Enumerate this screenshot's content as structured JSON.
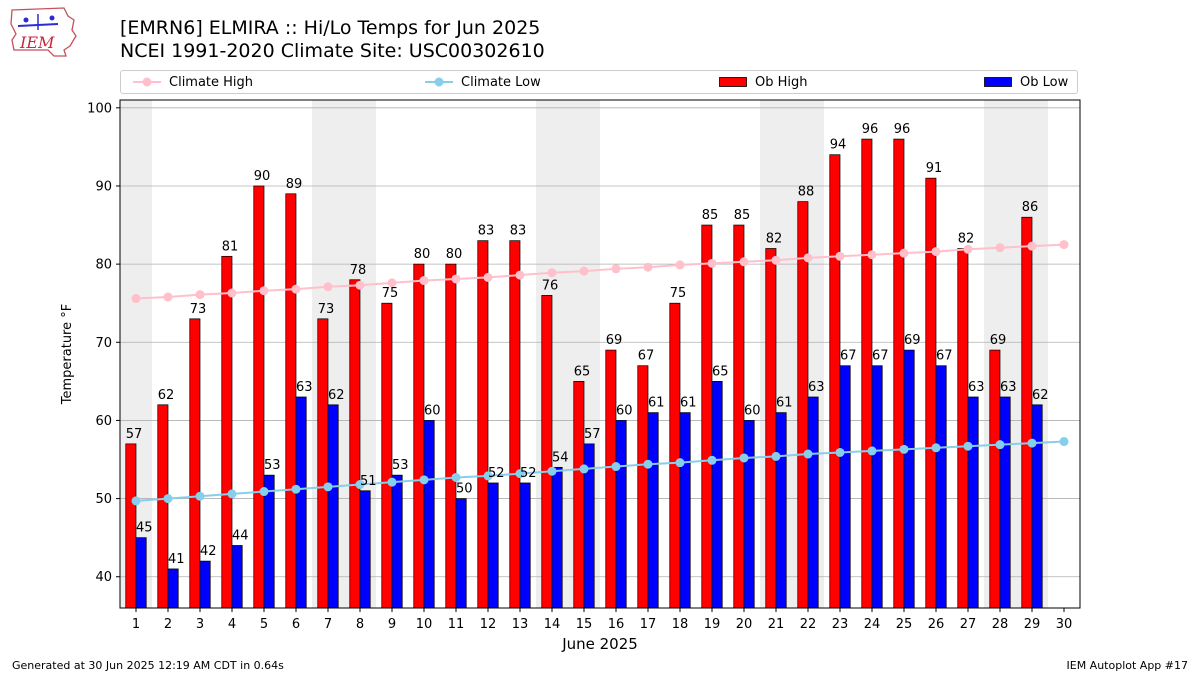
{
  "header": {
    "title_line1": "[EMRN6] ELMIRA :: Hi/Lo Temps for Jun 2025",
    "title_line2": "NCEI 1991-2020 Climate Site: USC00302610",
    "logo_text": "IEM"
  },
  "legend": {
    "climate_high": "Climate High",
    "climate_low": "Climate Low",
    "ob_high": "Ob High",
    "ob_low": "Ob Low"
  },
  "footer": {
    "generated": "Generated at 30 Jun 2025 12:19 AM CDT in 0.64s",
    "app": "IEM Autoplot App #17"
  },
  "colors": {
    "ob_high": "#ff0000",
    "ob_low": "#0000ff",
    "climate_high": "#ffc0cb",
    "climate_low": "#87ceeb",
    "weekend_band": "#eeeeee",
    "grid": "#b0b0b0"
  },
  "chart_data": {
    "type": "bar",
    "title": "[EMRN6] ELMIRA :: Hi/Lo Temps for Jun 2025",
    "xlabel": "June 2025",
    "ylabel": "Temperature °F",
    "ylim": [
      36,
      101
    ],
    "yticks": [
      40,
      50,
      60,
      70,
      80,
      90,
      100
    ],
    "xlim": [
      0.5,
      30.5
    ],
    "grid": "horizontal",
    "legend_position": "top",
    "categories": [
      "1",
      "2",
      "3",
      "4",
      "5",
      "6",
      "7",
      "8",
      "9",
      "10",
      "11",
      "12",
      "13",
      "14",
      "15",
      "16",
      "17",
      "18",
      "19",
      "20",
      "21",
      "22",
      "23",
      "24",
      "25",
      "26",
      "27",
      "28",
      "29",
      "30"
    ],
    "weekend_days": [
      1,
      7,
      8,
      14,
      15,
      21,
      22,
      28,
      29
    ],
    "series": [
      {
        "name": "Ob High",
        "kind": "bar",
        "values": [
          57,
          62,
          73,
          81,
          90,
          89,
          73,
          78,
          75,
          80,
          80,
          83,
          83,
          76,
          65,
          69,
          67,
          75,
          85,
          85,
          82,
          88,
          94,
          96,
          96,
          91,
          82,
          69,
          86,
          null
        ]
      },
      {
        "name": "Ob Low",
        "kind": "bar",
        "values": [
          45,
          41,
          42,
          44,
          53,
          63,
          62,
          51,
          53,
          60,
          50,
          52,
          52,
          54,
          57,
          60,
          61,
          61,
          65,
          60,
          61,
          63,
          67,
          67,
          69,
          67,
          63,
          63,
          62,
          null
        ]
      },
      {
        "name": "Climate High",
        "kind": "line",
        "values": [
          75.6,
          75.8,
          76.1,
          76.3,
          76.6,
          76.8,
          77.1,
          77.3,
          77.6,
          77.9,
          78.1,
          78.3,
          78.6,
          78.9,
          79.1,
          79.4,
          79.6,
          79.9,
          80.1,
          80.3,
          80.5,
          80.8,
          81.0,
          81.2,
          81.4,
          81.6,
          81.9,
          82.1,
          82.3,
          82.5
        ]
      },
      {
        "name": "Climate Low",
        "kind": "line",
        "values": [
          49.7,
          50.0,
          50.3,
          50.6,
          50.9,
          51.2,
          51.5,
          51.8,
          52.1,
          52.4,
          52.7,
          52.9,
          53.2,
          53.5,
          53.8,
          54.1,
          54.4,
          54.6,
          54.9,
          55.2,
          55.4,
          55.7,
          55.9,
          56.1,
          56.3,
          56.5,
          56.7,
          56.9,
          57.1,
          57.3
        ]
      }
    ]
  }
}
